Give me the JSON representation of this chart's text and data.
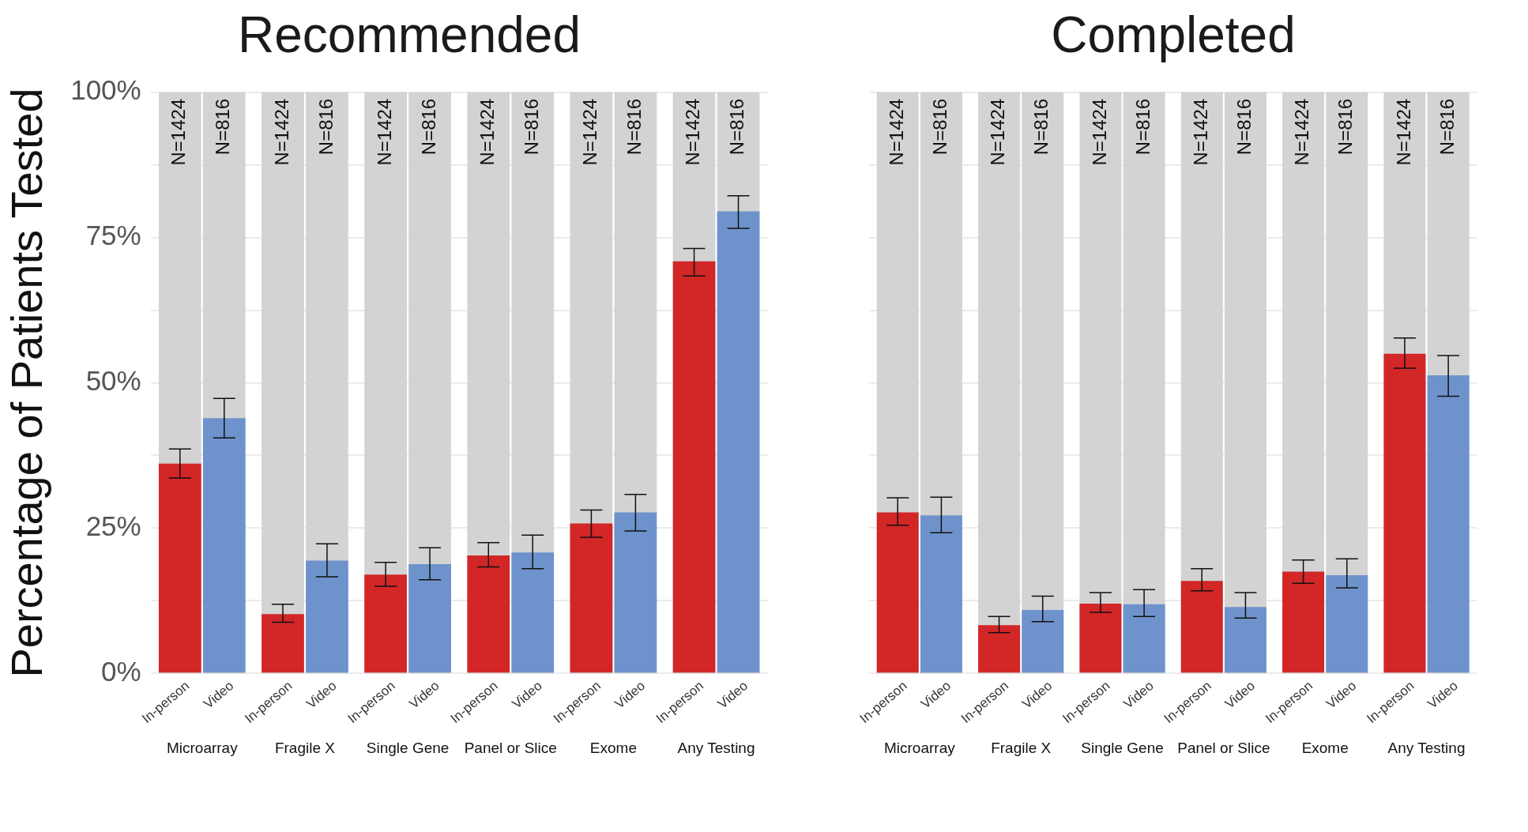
{
  "chart_data": [
    {
      "type": "bar",
      "title": "Recommended",
      "ylabel": "Percentage of Patients Tested",
      "categories": [
        "Microarray",
        "Fragile X",
        "Single Gene",
        "Panel or Slice",
        "Exome",
        "Any Testing"
      ],
      "series": [
        {
          "name": "In-person",
          "color": "#d22627",
          "values": [
            36.1,
            10.2,
            17.0,
            20.3,
            25.8,
            70.9
          ],
          "errors": [
            [
              33.6,
              38.6
            ],
            [
              8.8,
              11.9
            ],
            [
              15.0,
              19.1
            ],
            [
              18.3,
              22.5
            ],
            [
              23.4,
              28.1
            ],
            [
              68.4,
              73.1
            ]
          ]
        },
        {
          "name": "Video",
          "color": "#6e93cc",
          "values": [
            43.9,
            19.4,
            18.8,
            20.8,
            27.7,
            79.5
          ],
          "errors": [
            [
              40.5,
              47.3
            ],
            [
              16.6,
              22.3
            ],
            [
              16.1,
              21.6
            ],
            [
              18.0,
              23.8
            ],
            [
              24.5,
              30.8
            ],
            [
              76.6,
              82.2
            ]
          ]
        }
      ],
      "annotations": [
        "N=1424",
        "N=816",
        "N=1424",
        "N=816",
        "N=1424",
        "N=816",
        "N=1424",
        "N=816",
        "N=1424",
        "N=816",
        "N=1424",
        "N=816"
      ],
      "ylim": [
        0,
        100
      ],
      "yticks": [
        {
          "value": 0,
          "label": "0%"
        },
        {
          "value": 12.5,
          "label": null
        },
        {
          "value": 25,
          "label": "25%"
        },
        {
          "value": 37.5,
          "label": null
        },
        {
          "value": 50,
          "label": "50%"
        },
        {
          "value": 62.5,
          "label": null
        },
        {
          "value": 75,
          "label": "75%"
        },
        {
          "value": 87.5,
          "label": null
        },
        {
          "value": 100,
          "label": "100%"
        }
      ],
      "grid": "y"
    },
    {
      "type": "bar",
      "title": "Completed",
      "categories": [
        "Microarray",
        "Fragile X",
        "Single Gene",
        "Panel or Slice",
        "Exome",
        "Any Testing"
      ],
      "series": [
        {
          "name": "In-person",
          "color": "#d22627",
          "values": [
            27.7,
            8.3,
            12.0,
            15.9,
            17.5,
            55.0
          ],
          "errors": [
            [
              25.5,
              30.2
            ],
            [
              7.0,
              9.8
            ],
            [
              10.5,
              13.9
            ],
            [
              14.2,
              18.0
            ],
            [
              15.5,
              19.5
            ],
            [
              52.5,
              57.7
            ]
          ]
        },
        {
          "name": "Video",
          "color": "#6e93cc",
          "values": [
            27.2,
            10.9,
            11.9,
            11.4,
            16.9,
            51.3
          ],
          "errors": [
            [
              24.2,
              30.3
            ],
            [
              8.9,
              13.3
            ],
            [
              9.8,
              14.4
            ],
            [
              9.5,
              13.9
            ],
            [
              14.7,
              19.7
            ],
            [
              47.7,
              54.7
            ]
          ]
        }
      ],
      "annotations": [
        "N=1424",
        "N=816",
        "N=1424",
        "N=816",
        "N=1424",
        "N=816",
        "N=1424",
        "N=816",
        "N=1424",
        "N=816",
        "N=1424",
        "N=816"
      ],
      "ylim": [
        0,
        100
      ],
      "yticks": [
        0,
        12.5,
        25,
        37.5,
        50,
        62.5,
        75,
        87.5,
        100
      ],
      "grid": "y",
      "tick_labels": "x"
    }
  ]
}
